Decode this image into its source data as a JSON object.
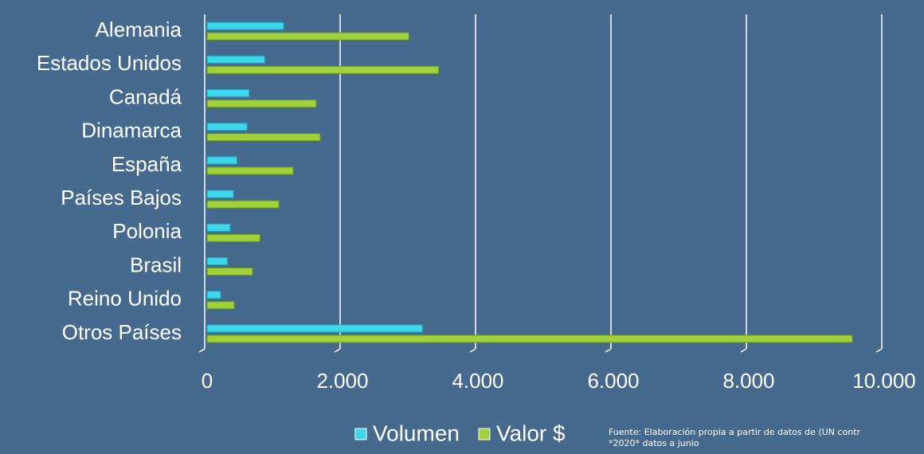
{
  "chart_data": {
    "type": "bar",
    "orientation": "horizontal",
    "categories": [
      "Alemania",
      "Estados Unidos",
      "Canadá",
      "Dinamarca",
      "España",
      "Países Bajos",
      "Polonia",
      "Brasil",
      "Reino Unido",
      "Otros Países"
    ],
    "series": [
      {
        "name": "Volumen",
        "color": "#3fd6ea",
        "values": [
          1130,
          850,
          620,
          590,
          440,
          390,
          340,
          300,
          200,
          3180
        ]
      },
      {
        "name": "Valor $",
        "color": "#9fd23a",
        "values": [
          2980,
          3420,
          1610,
          1670,
          1270,
          1060,
          780,
          670,
          400,
          9530
        ]
      }
    ],
    "xlim": [
      0,
      10000
    ],
    "xticks": [
      0,
      {
        "value": 2000,
        "label": "2.000"
      },
      {
        "value": 4000,
        "label": "4.000"
      },
      {
        "value": 6000,
        "label": "6.000"
      },
      {
        "value": 8000,
        "label": "8.000"
      },
      {
        "value": 10000,
        "label": "10.000"
      }
    ],
    "grid": true,
    "legend": "bottom",
    "notes": [
      "Fuente: Elaboración propia a partir de datos de (UN contr",
      "*2020* datos a junio"
    ]
  }
}
